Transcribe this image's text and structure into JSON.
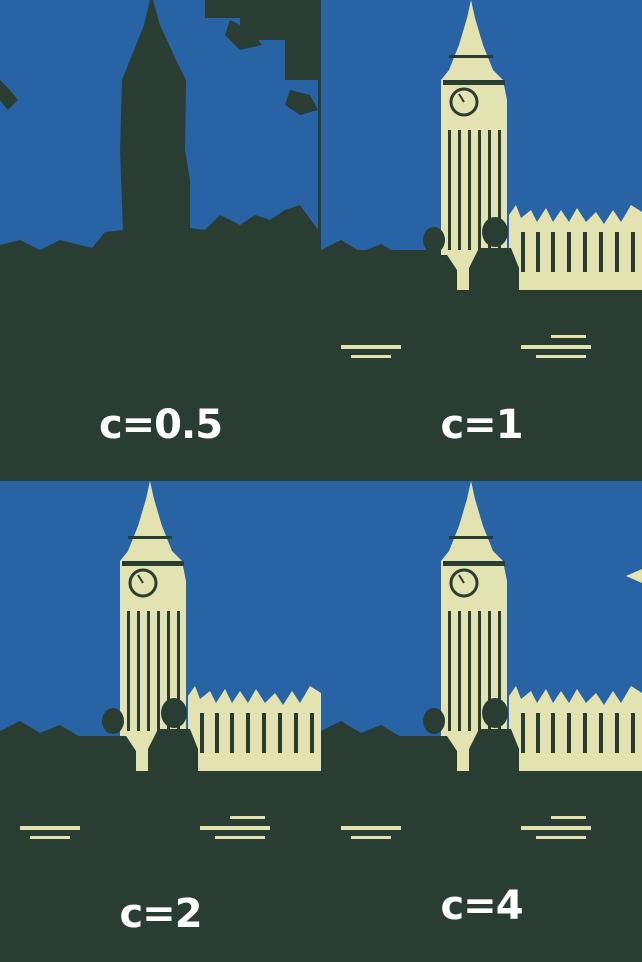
{
  "colors": {
    "sky": "#2863a6",
    "dark": "#2a3d33",
    "light": "#e3e2b1",
    "caption": "#ffffff"
  },
  "panels": [
    {
      "label": "c=0.5",
      "tone": "dark"
    },
    {
      "label": "c=1",
      "tone": "light"
    },
    {
      "label": "c=2",
      "tone": "light"
    },
    {
      "label": "c=4",
      "tone": "light"
    }
  ]
}
